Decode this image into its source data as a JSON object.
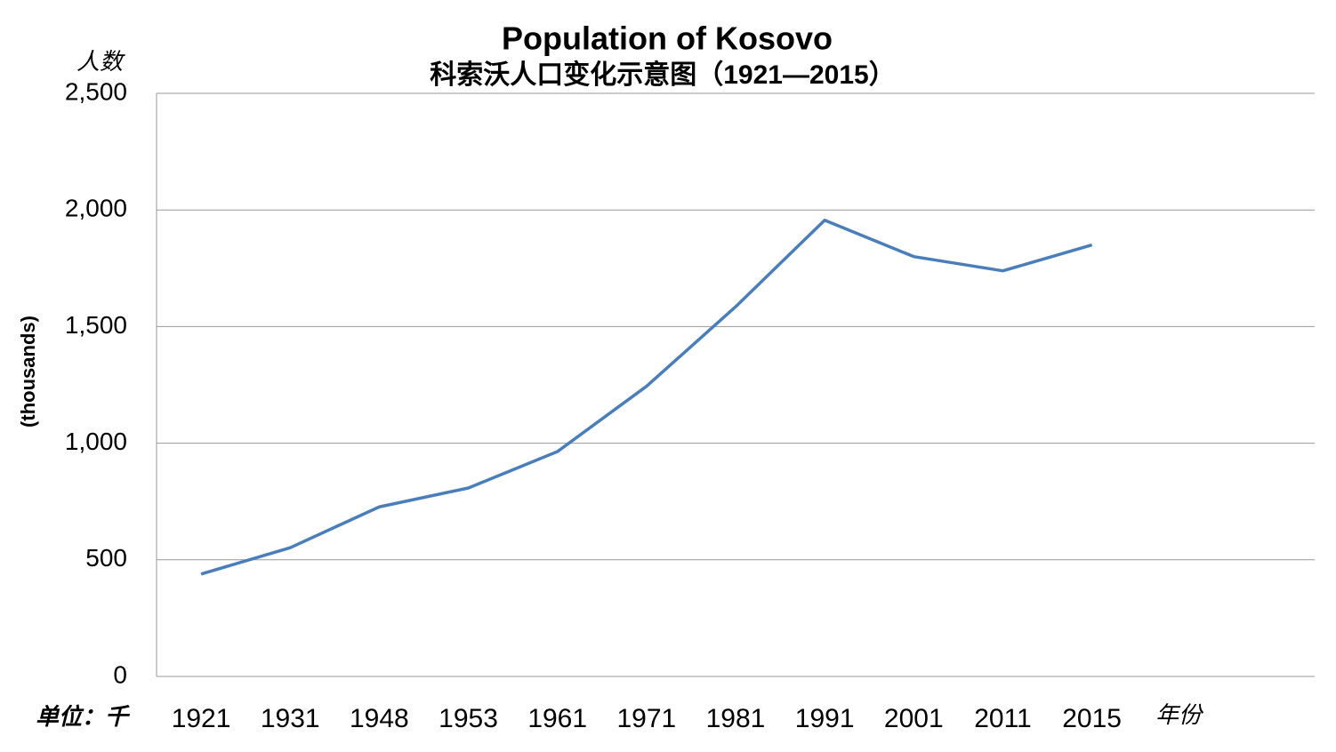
{
  "chart_data": {
    "type": "line",
    "title": "Population of Kosovo",
    "subtitle": "科索沃人口变化示意图（1921—2015）",
    "y_label": "(thousands)",
    "y_unit_note": "人数",
    "unit_note": "单位：千",
    "x_label": "年份",
    "categories": [
      "1921",
      "1931",
      "1948",
      "1953",
      "1961",
      "1971",
      "1981",
      "1991",
      "2001",
      "2011",
      "2015",
      null,
      null
    ],
    "series": [
      {
        "name": "Population",
        "color": "#4a7ebb",
        "values": [
          439,
          552,
          727,
          808,
          964,
          1244,
          1585,
          1956,
          1800,
          1739,
          1850,
          null,
          null
        ]
      }
    ],
    "ylim": [
      0,
      2500
    ],
    "yticks": [
      0,
      500,
      {
        "value": 1000,
        "label": "1,000"
      },
      {
        "value": 1500,
        "label": "1,500"
      },
      {
        "value": 2000,
        "label": "2,000"
      },
      {
        "value": 2500,
        "label": "2,500"
      }
    ],
    "grid": true
  }
}
